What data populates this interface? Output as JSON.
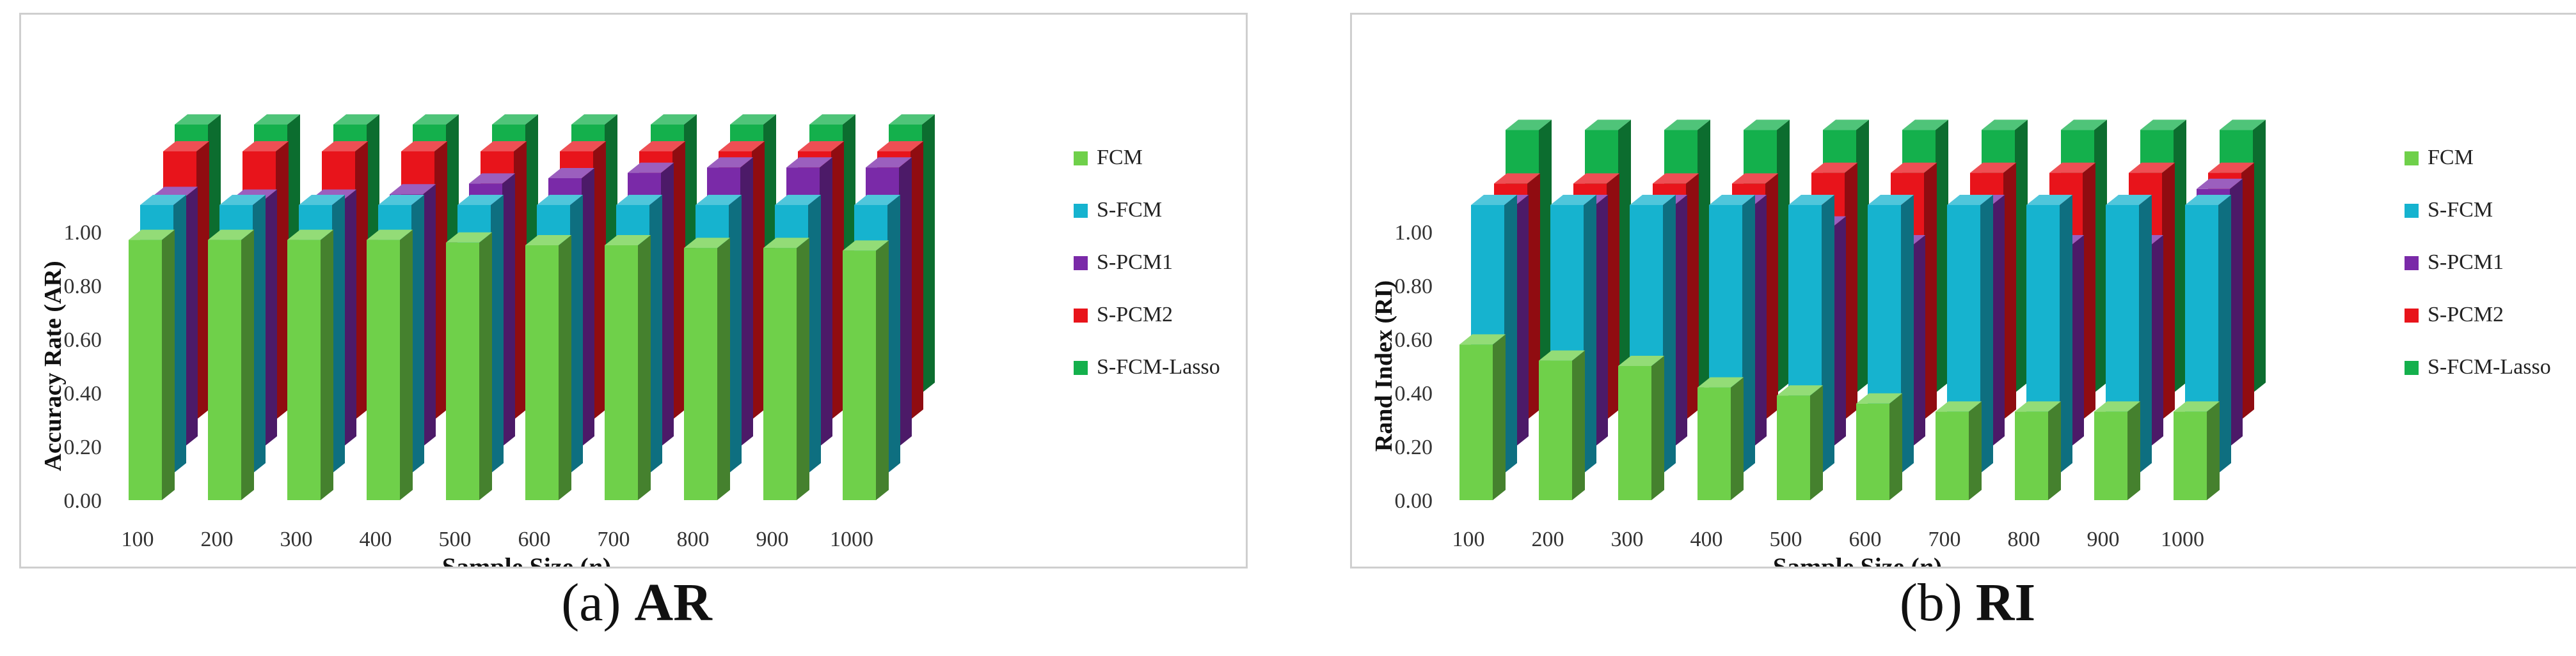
{
  "chart_data": [
    {
      "type": "bar",
      "subtype": "3d-clustered-columns",
      "categories": [
        "100",
        "200",
        "300",
        "400",
        "500",
        "600",
        "700",
        "800",
        "900",
        "1000"
      ],
      "xlabel_text": "Sample Size (",
      "xlabel_var": "n",
      "xlabel_close": ")",
      "ylabel": "Accuracy Rate (AR)",
      "yticks": [
        "0.00",
        "0.20",
        "0.40",
        "0.60",
        "0.80",
        "1.00"
      ],
      "ylim": [
        0,
        1
      ],
      "legend_position": "right",
      "series": [
        {
          "name": "FCM",
          "color": "#6fd04a",
          "values": [
            0.97,
            0.97,
            0.97,
            0.97,
            0.96,
            0.95,
            0.95,
            0.94,
            0.94,
            0.93
          ]
        },
        {
          "name": "S-FCM",
          "color": "#16b3cf",
          "values": [
            1.0,
            1.0,
            1.0,
            1.0,
            1.0,
            1.0,
            1.0,
            1.0,
            1.0,
            1.0
          ]
        },
        {
          "name": "S-PCM1",
          "color": "#7a2aa8",
          "values": [
            0.93,
            0.92,
            0.92,
            0.94,
            0.98,
            1.0,
            1.02,
            1.04,
            1.04,
            1.04
          ]
        },
        {
          "name": "S-PCM2",
          "color": "#e8141b",
          "values": [
            1.0,
            1.0,
            1.0,
            1.0,
            1.0,
            1.0,
            1.0,
            1.0,
            1.0,
            1.0
          ]
        },
        {
          "name": "S-FCM-Lasso",
          "color": "#14b04c",
          "values": [
            1.0,
            1.0,
            1.0,
            1.0,
            1.0,
            1.0,
            1.0,
            1.0,
            1.0,
            1.0
          ]
        }
      ],
      "caption_label": "(a)",
      "caption_title": "AR"
    },
    {
      "type": "bar",
      "subtype": "3d-clustered-columns",
      "categories": [
        "100",
        "200",
        "300",
        "400",
        "500",
        "600",
        "700",
        "800",
        "900",
        "1000"
      ],
      "xlabel_text": "Sample Size (",
      "xlabel_var": "n",
      "xlabel_close": ")",
      "ylabel": "Rand Index (RI)",
      "yticks": [
        "0.00",
        "0.20",
        "0.40",
        "0.60",
        "0.80",
        "1.00"
      ],
      "ylim": [
        0,
        1
      ],
      "legend_position": "right",
      "series": [
        {
          "name": "FCM",
          "color": "#6fd04a",
          "values": [
            0.58,
            0.52,
            0.5,
            0.42,
            0.39,
            0.36,
            0.33,
            0.33,
            0.33,
            0.33
          ]
        },
        {
          "name": "S-FCM",
          "color": "#16b3cf",
          "values": [
            1.0,
            1.0,
            1.0,
            1.0,
            1.0,
            1.0,
            1.0,
            1.0,
            1.0,
            1.0
          ]
        },
        {
          "name": "S-PCM1",
          "color": "#7a2aa8",
          "values": [
            0.9,
            0.9,
            0.9,
            0.9,
            0.82,
            0.75,
            0.9,
            0.75,
            0.75,
            0.96
          ]
        },
        {
          "name": "S-PCM2",
          "color": "#e8141b",
          "values": [
            0.88,
            0.88,
            0.88,
            0.88,
            0.92,
            0.92,
            0.92,
            0.92,
            0.92,
            0.92
          ]
        },
        {
          "name": "S-FCM-Lasso",
          "color": "#14b04c",
          "values": [
            0.98,
            0.98,
            0.98,
            0.98,
            0.98,
            0.98,
            0.98,
            0.98,
            0.98,
            0.98
          ]
        }
      ],
      "caption_label": "(b)",
      "caption_title": "RI"
    }
  ]
}
